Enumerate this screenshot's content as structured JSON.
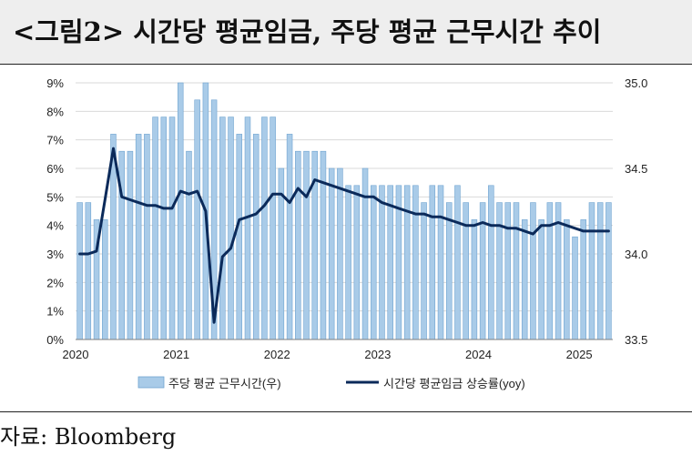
{
  "title": "<그림2> 시간당 평균임금, 주당 평균 근무시간 추이",
  "source": "자료: Bloomberg",
  "chart_data": {
    "type": "bar+line",
    "left_axis": {
      "ticks": [
        "9%",
        "8%",
        "7%",
        "6%",
        "5%",
        "4%",
        "3%",
        "2%",
        "1%",
        "0%"
      ],
      "range": [
        0,
        9
      ]
    },
    "right_axis": {
      "ticks": [
        "35.0",
        "34.5",
        "34.0",
        "33.5"
      ],
      "range": [
        33.5,
        35.0
      ]
    },
    "x_tick_labels": [
      "2020",
      "2021",
      "2022",
      "2023",
      "2024",
      "2025"
    ],
    "x_start": "2020-01",
    "series": [
      {
        "name": "주당 평균 근무시간(우)",
        "kind": "bar",
        "axis": "right",
        "color": "#a9cbe8",
        "edge_color": "#6fa3d0",
        "values": [
          34.3,
          34.3,
          34.2,
          34.2,
          34.7,
          34.6,
          34.6,
          34.7,
          34.7,
          34.8,
          34.8,
          34.8,
          35.0,
          34.6,
          34.9,
          35.0,
          34.9,
          34.8,
          34.8,
          34.7,
          34.8,
          34.7,
          34.8,
          34.8,
          34.5,
          34.7,
          34.6,
          34.6,
          34.6,
          34.6,
          34.5,
          34.5,
          34.4,
          34.4,
          34.5,
          34.4,
          34.4,
          34.4,
          34.4,
          34.4,
          34.4,
          34.3,
          34.4,
          34.4,
          34.3,
          34.4,
          34.3,
          34.2,
          34.3,
          34.4,
          34.3,
          34.3,
          34.3,
          34.2,
          34.3,
          34.2,
          34.3,
          34.3,
          34.2,
          34.1,
          34.2,
          34.3,
          34.3,
          34.3
        ]
      },
      {
        "name": "시간당 평균임금 상승률(yoy)",
        "kind": "line",
        "axis": "left",
        "color": "#0b2a5a",
        "values": [
          3.0,
          3.0,
          3.1,
          4.9,
          6.7,
          5.0,
          4.9,
          4.8,
          4.7,
          4.7,
          4.6,
          4.6,
          5.2,
          5.1,
          5.2,
          4.5,
          0.6,
          2.9,
          3.2,
          4.2,
          4.3,
          4.4,
          4.7,
          5.1,
          5.1,
          4.8,
          5.3,
          5.0,
          5.6,
          5.5,
          5.4,
          5.3,
          5.2,
          5.1,
          5.0,
          5.0,
          4.8,
          4.7,
          4.6,
          4.5,
          4.4,
          4.4,
          4.3,
          4.3,
          4.2,
          4.1,
          4.0,
          4.0,
          4.1,
          4.0,
          4.0,
          3.9,
          3.9,
          3.8,
          3.7,
          4.0,
          4.0,
          4.1,
          4.0,
          3.9,
          3.8,
          3.8,
          3.8,
          3.8
        ]
      }
    ]
  }
}
